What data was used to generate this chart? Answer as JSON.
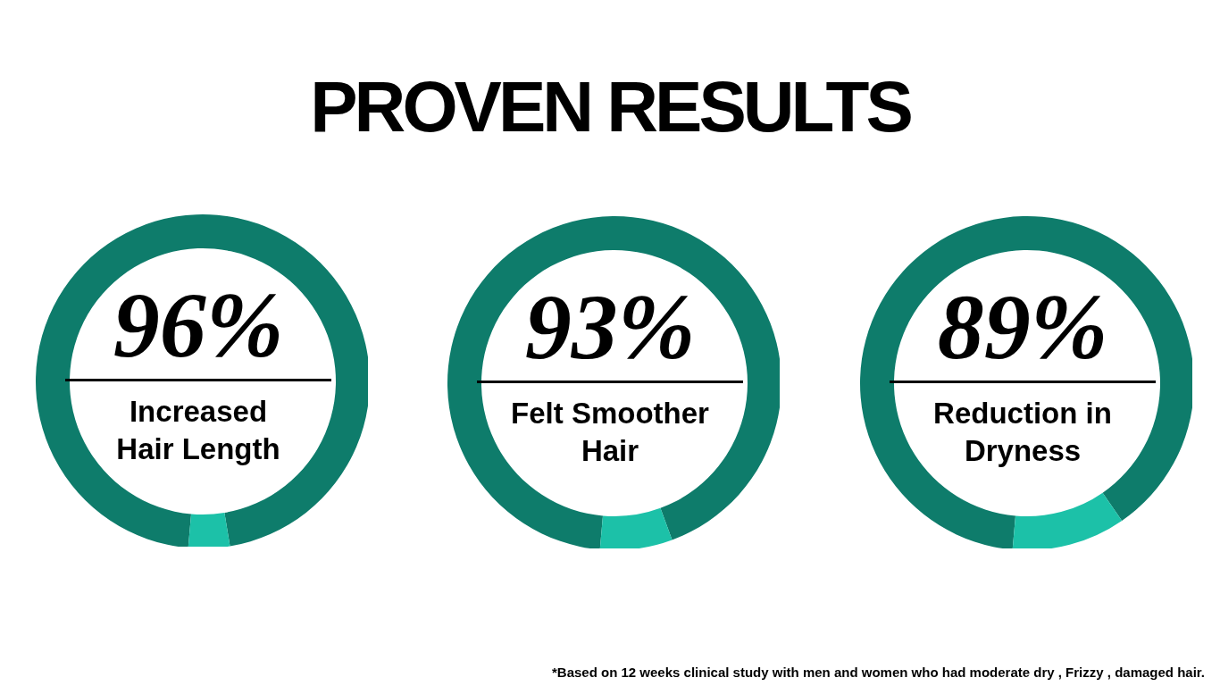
{
  "chart_data": [
    {
      "type": "donut",
      "categories": [
        "Increased Hair Length",
        null
      ],
      "values": [
        96,
        4
      ],
      "colors": [
        "#0e7c6b",
        "#1cc1a8"
      ],
      "value_labels": [
        "96%",
        null
      ]
    },
    {
      "type": "donut",
      "title": "PROVEN RESULTS",
      "categories": [
        "Felt Smoother Hair",
        null
      ],
      "values": [
        93,
        7
      ],
      "colors": [
        "#0e7c6b",
        "#1cc1a8"
      ],
      "value_labels": [
        "93%",
        null
      ]
    },
    {
      "type": "donut",
      "categories": [
        "Reduction in Dryness",
        null
      ],
      "values": [
        89,
        11
      ],
      "colors": [
        "#0e7c6b",
        "#1cc1a8"
      ],
      "value_labels": [
        "89%",
        null
      ],
      "annotations": [
        "*Based on 12 weeks clinical study with men and women who had moderate dry , Frizzy , damaged hair."
      ]
    }
  ]
}
